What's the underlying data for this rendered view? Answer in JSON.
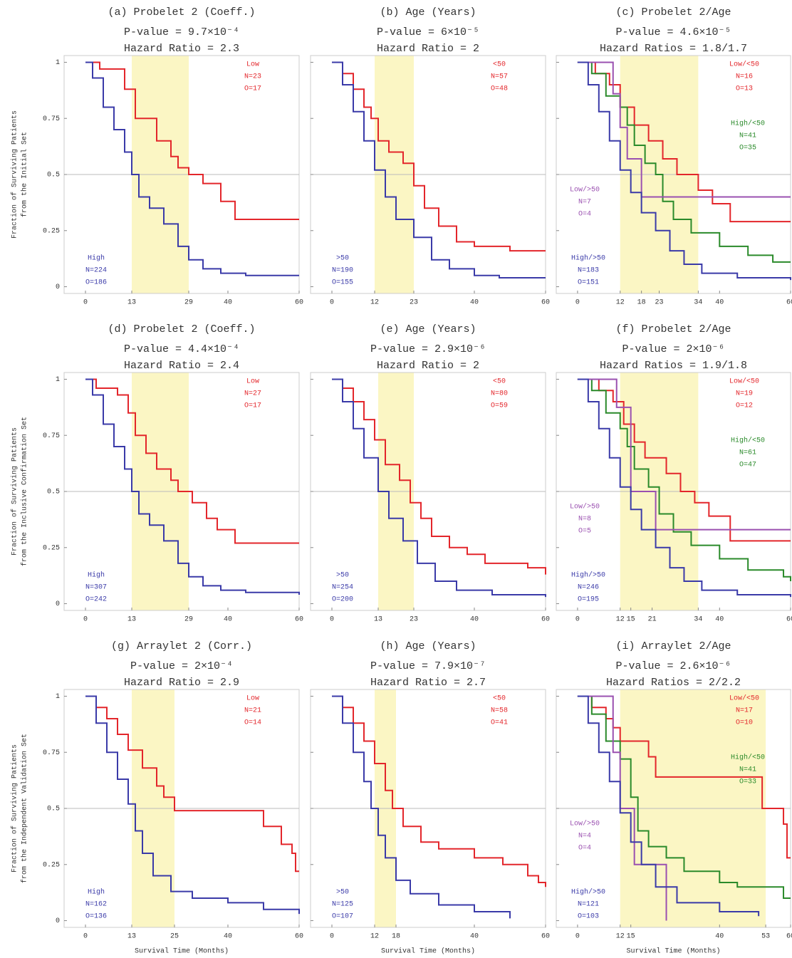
{
  "chart_data": [
    {
      "type": "step",
      "title": "(a) Probelet 2 (Coeff.)",
      "subtitle": "P-value = 9.7×10⁻⁴",
      "hazard": "Hazard Ratio = 2.3",
      "ylabel": [
        "Fraction of Surviving Patients",
        "from the Initial Set"
      ],
      "xlim": [
        -6,
        60
      ],
      "ylim": [
        -0.03,
        1.03
      ],
      "xticks": [
        0,
        13,
        29,
        40,
        60
      ],
      "yticks": [
        0,
        0.25,
        0.5,
        0.75,
        1
      ],
      "shade": [
        13,
        29
      ],
      "reference_line": 0.5,
      "series": [
        {
          "name": "Low",
          "n_label": "N=23",
          "o_label": "O=17",
          "color": "#e3262b",
          "x": [
            0,
            4,
            11,
            14,
            20,
            24,
            26,
            29,
            33,
            38,
            42,
            60
          ],
          "values": [
            1,
            0.97,
            0.88,
            0.75,
            0.65,
            0.58,
            0.53,
            0.5,
            0.46,
            0.38,
            0.3,
            0.3
          ]
        },
        {
          "name": "High",
          "n_label": "N=224",
          "o_label": "O=186",
          "color": "#3a3aa8",
          "x": [
            0,
            2,
            5,
            8,
            11,
            13,
            15,
            18,
            22,
            26,
            29,
            33,
            38,
            45,
            60
          ],
          "values": [
            1,
            0.93,
            0.8,
            0.7,
            0.6,
            0.5,
            0.4,
            0.35,
            0.28,
            0.18,
            0.12,
            0.08,
            0.06,
            0.05,
            0.05
          ]
        }
      ]
    },
    {
      "type": "step",
      "title": "(b) Age (Years)",
      "subtitle": "P-value = 6×10⁻⁵",
      "hazard": "Hazard Ratio = 2",
      "xlim": [
        -6,
        60
      ],
      "ylim": [
        -0.03,
        1.03
      ],
      "xticks": [
        0,
        12,
        23,
        40,
        60
      ],
      "yticks": [
        0,
        0.25,
        0.5,
        0.75,
        1
      ],
      "shade": [
        12,
        23
      ],
      "reference_line": 0.5,
      "series": [
        {
          "name": "<50",
          "n_label": "N=57",
          "o_label": "O=48",
          "color": "#e3262b",
          "x": [
            0,
            3,
            6,
            9,
            11,
            13,
            16,
            20,
            23,
            26,
            30,
            35,
            40,
            50,
            60
          ],
          "values": [
            1,
            0.95,
            0.88,
            0.8,
            0.75,
            0.65,
            0.6,
            0.55,
            0.45,
            0.35,
            0.27,
            0.2,
            0.18,
            0.16,
            0.16
          ]
        },
        {
          "name": ">50",
          "n_label": "N=190",
          "o_label": "O=155",
          "color": "#3a3aa8",
          "x": [
            0,
            3,
            6,
            9,
            12,
            15,
            18,
            23,
            28,
            33,
            40,
            47,
            60
          ],
          "values": [
            1,
            0.9,
            0.78,
            0.65,
            0.52,
            0.4,
            0.3,
            0.22,
            0.12,
            0.08,
            0.05,
            0.04,
            0.04
          ]
        }
      ]
    },
    {
      "type": "step",
      "title": "(c) Probelet 2/Age",
      "subtitle": "P-value = 4.6×10⁻⁵",
      "hazard": "Hazard Ratios = 1.8/1.7",
      "xlim": [
        -6,
        60
      ],
      "ylim": [
        -0.03,
        1.03
      ],
      "xticks": [
        0,
        12,
        18,
        23,
        34,
        40,
        60
      ],
      "yticks": [
        0,
        0.25,
        0.5,
        0.75,
        1
      ],
      "shade": [
        12,
        34
      ],
      "reference_line": 0.5,
      "series": [
        {
          "name": "Low/<50",
          "n_label": "N=16",
          "o_label": "O=13",
          "color": "#e3262b",
          "x": [
            0,
            5,
            9,
            12,
            16,
            20,
            24,
            28,
            34,
            38,
            43,
            60
          ],
          "values": [
            1,
            0.95,
            0.9,
            0.8,
            0.72,
            0.65,
            0.57,
            0.5,
            0.43,
            0.37,
            0.29,
            0.29
          ]
        },
        {
          "name": "High/<50",
          "n_label": "N=41",
          "o_label": "O=35",
          "color": "#2a8a2a",
          "x": [
            0,
            4,
            8,
            12,
            14,
            16,
            19,
            22,
            24,
            27,
            32,
            40,
            48,
            55,
            60
          ],
          "values": [
            1,
            0.95,
            0.85,
            0.8,
            0.72,
            0.63,
            0.55,
            0.5,
            0.38,
            0.3,
            0.24,
            0.18,
            0.14,
            0.11,
            0.11
          ]
        },
        {
          "name": "Low/>50",
          "n_label": "N=7",
          "o_label": "O=4",
          "color": "#9a50b0",
          "x": [
            0,
            10,
            12,
            14,
            18,
            60
          ],
          "values": [
            1,
            0.86,
            0.71,
            0.57,
            0.4,
            0.4
          ]
        },
        {
          "name": "High/>50",
          "n_label": "N=183",
          "o_label": "O=151",
          "color": "#3a3aa8",
          "x": [
            0,
            3,
            6,
            9,
            12,
            15,
            18,
            22,
            26,
            30,
            35,
            45,
            60
          ],
          "values": [
            1,
            0.9,
            0.78,
            0.65,
            0.52,
            0.42,
            0.33,
            0.25,
            0.16,
            0.1,
            0.06,
            0.04,
            0.03
          ]
        }
      ]
    },
    {
      "type": "step",
      "title": "(d) Probelet 2 (Coeff.)",
      "subtitle": "P-value = 4.4×10⁻⁴",
      "hazard": "Hazard Ratio = 2.4",
      "ylabel": [
        "Fraction of Surviving Patients",
        "from the Inclusive Confirmation Set"
      ],
      "xlim": [
        -6,
        60
      ],
      "ylim": [
        -0.03,
        1.03
      ],
      "xticks": [
        0,
        13,
        29,
        40,
        60
      ],
      "yticks": [
        0,
        0.25,
        0.5,
        0.75,
        1
      ],
      "shade": [
        13,
        29
      ],
      "reference_line": 0.5,
      "series": [
        {
          "name": "Low",
          "n_label": "N=27",
          "o_label": "O=17",
          "color": "#e3262b",
          "x": [
            0,
            3,
            9,
            12,
            14,
            17,
            20,
            24,
            26,
            30,
            34,
            37,
            42,
            60
          ],
          "values": [
            1,
            0.96,
            0.93,
            0.85,
            0.75,
            0.67,
            0.6,
            0.55,
            0.5,
            0.45,
            0.38,
            0.33,
            0.27,
            0.27
          ]
        },
        {
          "name": "High",
          "n_label": "N=307",
          "o_label": "O=242",
          "color": "#3a3aa8",
          "x": [
            0,
            2,
            5,
            8,
            11,
            13,
            15,
            18,
            22,
            26,
            29,
            33,
            38,
            45,
            60
          ],
          "values": [
            1,
            0.93,
            0.8,
            0.7,
            0.6,
            0.5,
            0.4,
            0.35,
            0.28,
            0.18,
            0.12,
            0.08,
            0.06,
            0.05,
            0.04
          ]
        }
      ]
    },
    {
      "type": "step",
      "title": "(e) Age (Years)",
      "subtitle": "P-value = 2.9×10⁻⁶",
      "hazard": "Hazard Ratio = 2",
      "xlim": [
        -6,
        60
      ],
      "ylim": [
        -0.03,
        1.03
      ],
      "xticks": [
        0,
        13,
        23,
        40,
        60
      ],
      "yticks": [
        0,
        0.25,
        0.5,
        0.75,
        1
      ],
      "shade": [
        13,
        23
      ],
      "reference_line": 0.5,
      "series": [
        {
          "name": "<50",
          "n_label": "N=80",
          "o_label": "O=59",
          "color": "#e3262b",
          "x": [
            0,
            3,
            6,
            9,
            12,
            15,
            19,
            22,
            25,
            28,
            33,
            38,
            43,
            55,
            60
          ],
          "values": [
            1,
            0.96,
            0.9,
            0.82,
            0.73,
            0.62,
            0.55,
            0.45,
            0.38,
            0.3,
            0.25,
            0.22,
            0.18,
            0.16,
            0.13
          ]
        },
        {
          "name": ">50",
          "n_label": "N=254",
          "o_label": "O=200",
          "color": "#3a3aa8",
          "x": [
            0,
            3,
            6,
            9,
            13,
            16,
            20,
            24,
            29,
            35,
            45,
            60
          ],
          "values": [
            1,
            0.9,
            0.78,
            0.65,
            0.5,
            0.38,
            0.28,
            0.18,
            0.1,
            0.06,
            0.04,
            0.03
          ]
        }
      ]
    },
    {
      "type": "step",
      "title": "(f) Probelet 2/Age",
      "subtitle": "P-value = 2×10⁻⁶",
      "hazard": "Hazard Ratios = 1.9/1.8",
      "xlim": [
        -6,
        60
      ],
      "ylim": [
        -0.03,
        1.03
      ],
      "xticks": [
        0,
        12,
        15,
        21,
        34,
        40,
        60
      ],
      "yticks": [
        0,
        0.25,
        0.5,
        0.75,
        1
      ],
      "shade": [
        12,
        34
      ],
      "reference_line": 0.5,
      "series": [
        {
          "name": "Low/<50",
          "n_label": "N=19",
          "o_label": "O=12",
          "color": "#e3262b",
          "x": [
            0,
            6,
            10,
            13,
            16,
            19,
            25,
            29,
            33,
            37,
            43,
            60
          ],
          "values": [
            1,
            0.95,
            0.9,
            0.8,
            0.72,
            0.65,
            0.58,
            0.5,
            0.45,
            0.39,
            0.28,
            0.28
          ]
        },
        {
          "name": "High/<50",
          "n_label": "N=61",
          "o_label": "O=47",
          "color": "#2a8a2a",
          "x": [
            0,
            4,
            8,
            12,
            14,
            16,
            20,
            23,
            27,
            32,
            40,
            48,
            58,
            60
          ],
          "values": [
            1,
            0.95,
            0.85,
            0.78,
            0.7,
            0.6,
            0.52,
            0.4,
            0.32,
            0.26,
            0.2,
            0.15,
            0.12,
            0.1
          ]
        },
        {
          "name": "Low/>50",
          "n_label": "N=8",
          "o_label": "O=5",
          "color": "#9a50b0",
          "x": [
            0,
            10,
            11,
            15,
            21,
            22,
            60
          ],
          "values": [
            1,
            1,
            0.875,
            0.5,
            0.5,
            0.33,
            0.33
          ]
        },
        {
          "name": "High/>50",
          "n_label": "N=246",
          "o_label": "O=195",
          "color": "#3a3aa8",
          "x": [
            0,
            3,
            6,
            9,
            12,
            15,
            18,
            22,
            26,
            30,
            35,
            45,
            60
          ],
          "values": [
            1,
            0.9,
            0.78,
            0.65,
            0.52,
            0.42,
            0.33,
            0.25,
            0.16,
            0.1,
            0.06,
            0.04,
            0.03
          ]
        }
      ]
    },
    {
      "type": "step",
      "title": "(g) Arraylet 2 (Corr.)",
      "subtitle": "P-value = 2×10⁻⁴",
      "hazard": "Hazard Ratio = 2.9",
      "ylabel": [
        "Fraction of Surviving Patients",
        "from the Independent Validation Set"
      ],
      "xlabel": "Survival Time (Months)",
      "xlim": [
        -6,
        60
      ],
      "ylim": [
        -0.03,
        1.03
      ],
      "xticks": [
        0,
        13,
        25,
        40,
        60
      ],
      "yticks": [
        0,
        0.25,
        0.5,
        0.75,
        1
      ],
      "shade": [
        13,
        25
      ],
      "reference_line": 0.5,
      "series": [
        {
          "name": "Low",
          "n_label": "N=21",
          "o_label": "O=14",
          "color": "#e3262b",
          "x": [
            0,
            3,
            6,
            9,
            12,
            16,
            20,
            22,
            25,
            50,
            55,
            58,
            59,
            60
          ],
          "values": [
            1,
            0.95,
            0.9,
            0.83,
            0.76,
            0.68,
            0.6,
            0.55,
            0.49,
            0.42,
            0.34,
            0.3,
            0.22,
            0.22
          ]
        },
        {
          "name": "High",
          "n_label": "N=162",
          "o_label": "O=136",
          "color": "#3a3aa8",
          "x": [
            0,
            3,
            6,
            9,
            12,
            14,
            16,
            19,
            24,
            30,
            40,
            50,
            60
          ],
          "values": [
            1,
            0.88,
            0.75,
            0.63,
            0.52,
            0.4,
            0.3,
            0.2,
            0.13,
            0.1,
            0.08,
            0.05,
            0.03
          ]
        }
      ]
    },
    {
      "type": "step",
      "title": "(h) Age (Years)",
      "subtitle": "P-value = 7.9×10⁻⁷",
      "hazard": "Hazard Ratio = 2.7",
      "xlabel": "Survival Time (Months)",
      "xlim": [
        -6,
        60
      ],
      "ylim": [
        -0.03,
        1.03
      ],
      "xticks": [
        0,
        12,
        18,
        40,
        60
      ],
      "yticks": [
        0,
        0.25,
        0.5,
        0.75,
        1
      ],
      "shade": [
        12,
        18
      ],
      "reference_line": 0.5,
      "series": [
        {
          "name": "<50",
          "n_label": "N=58",
          "o_label": "O=41",
          "color": "#e3262b",
          "x": [
            0,
            3,
            6,
            9,
            12,
            15,
            17,
            20,
            25,
            30,
            40,
            48,
            55,
            58,
            60
          ],
          "values": [
            1,
            0.95,
            0.88,
            0.8,
            0.7,
            0.58,
            0.5,
            0.42,
            0.35,
            0.32,
            0.28,
            0.25,
            0.2,
            0.17,
            0.15
          ]
        },
        {
          "name": ">50",
          "n_label": "N=125",
          "o_label": "O=107",
          "color": "#3a3aa8",
          "x": [
            0,
            3,
            6,
            9,
            11,
            13,
            15,
            18,
            22,
            30,
            40,
            50
          ],
          "values": [
            1,
            0.88,
            0.75,
            0.62,
            0.5,
            0.38,
            0.28,
            0.18,
            0.12,
            0.07,
            0.04,
            0.01
          ]
        }
      ]
    },
    {
      "type": "step",
      "title": "(i) Arraylet 2/Age",
      "subtitle": "P-value = 2.6×10⁻⁶",
      "hazard": "Hazard Ratios = 2/2.2",
      "xlabel": "Survival Time (Months)",
      "xlim": [
        -6,
        60
      ],
      "ylim": [
        -0.03,
        1.03
      ],
      "xticks": [
        0,
        12,
        15,
        40,
        53,
        60
      ],
      "yticks": [
        0,
        0.25,
        0.5,
        0.75,
        1
      ],
      "shade": [
        12,
        53
      ],
      "reference_line": 0.5,
      "series": [
        {
          "name": "Low/<50",
          "n_label": "N=17",
          "o_label": "O=10",
          "color": "#e3262b",
          "x": [
            0,
            4,
            8,
            10,
            12,
            20,
            22,
            47,
            52,
            58,
            59,
            60
          ],
          "values": [
            1,
            0.95,
            0.9,
            0.86,
            0.8,
            0.73,
            0.64,
            0.64,
            0.5,
            0.43,
            0.28,
            0.28
          ]
        },
        {
          "name": "High/<50",
          "n_label": "N=41",
          "o_label": "O=33",
          "color": "#2a8a2a",
          "x": [
            0,
            4,
            8,
            12,
            15,
            17,
            20,
            25,
            30,
            40,
            45,
            58,
            60
          ],
          "values": [
            1,
            0.92,
            0.8,
            0.72,
            0.55,
            0.4,
            0.33,
            0.28,
            0.22,
            0.17,
            0.15,
            0.1,
            0.1
          ]
        },
        {
          "name": "Low/>50",
          "n_label": "N=4",
          "o_label": "O=4",
          "color": "#9a50b0",
          "x": [
            0,
            10,
            12,
            16,
            25
          ],
          "values": [
            1,
            0.75,
            0.5,
            0.25,
            0
          ]
        },
        {
          "name": "High/>50",
          "n_label": "N=121",
          "o_label": "O=103",
          "color": "#3a3aa8",
          "x": [
            0,
            3,
            6,
            9,
            12,
            15,
            18,
            22,
            28,
            40,
            51
          ],
          "values": [
            1,
            0.88,
            0.75,
            0.62,
            0.48,
            0.35,
            0.25,
            0.15,
            0.08,
            0.04,
            0.02
          ]
        }
      ]
    }
  ]
}
